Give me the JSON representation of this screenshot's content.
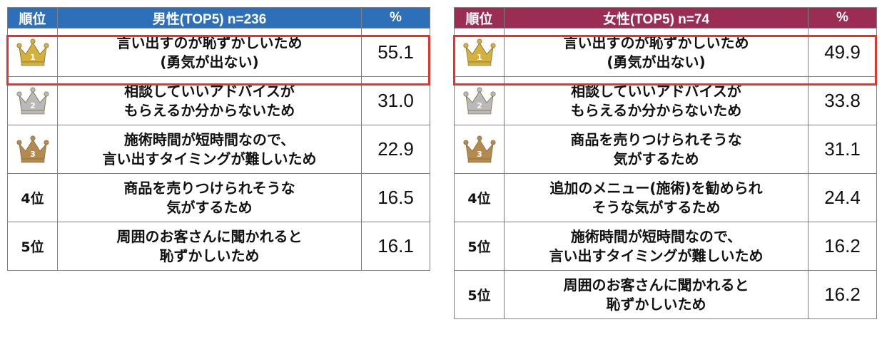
{
  "chart_data": [
    {
      "type": "table",
      "header": {
        "rank": "順位",
        "title": "男性(TOP5) n=236",
        "unit": "%"
      },
      "rows": [
        {
          "rank": "1",
          "reason": [
            "言い出すのが恥ずかしいため",
            "(勇気が出ない)"
          ],
          "value": "55.1"
        },
        {
          "rank": "2",
          "reason": [
            "相談していいアドバイスが",
            "もらえるか分からないため"
          ],
          "value": "31.0"
        },
        {
          "rank": "3",
          "reason": [
            "施術時間が短時間なので、",
            "言い出すタイミングが難しいため"
          ],
          "value": "22.9"
        },
        {
          "rank": "4位",
          "reason": [
            "商品を売りつけられそうな",
            "気がするため"
          ],
          "value": "16.5"
        },
        {
          "rank": "5位",
          "reason": [
            "周囲のお客さんに聞かれると",
            "恥ずかしいため"
          ],
          "value": "16.1"
        }
      ]
    },
    {
      "type": "table",
      "header": {
        "rank": "順位",
        "title": "女性(TOP5) n=74",
        "unit": "%"
      },
      "rows": [
        {
          "rank": "1",
          "reason": [
            "言い出すのが恥ずかしいため",
            "(勇気が出ない)"
          ],
          "value": "49.9"
        },
        {
          "rank": "2",
          "reason": [
            "相談していいアドバイスが",
            "もらえるか分からないため"
          ],
          "value": "33.8"
        },
        {
          "rank": "3",
          "reason": [
            "商品を売りつけられそうな",
            "気がするため"
          ],
          "value": "31.1"
        },
        {
          "rank": "4位",
          "reason": [
            "追加のメニュー(施術)を勧められ",
            "そうな気がするため"
          ],
          "value": "24.4"
        },
        {
          "rank": "5位",
          "reason": [
            "施術時間が短時間なので、",
            "言い出すタイミングが難しいため"
          ],
          "value": "16.2"
        },
        {
          "rank": "5位",
          "reason": [
            "周囲のお客さんに聞かれると",
            "恥ずかしいため"
          ],
          "value": "16.2"
        }
      ]
    }
  ],
  "colors": {
    "men_header": "#2e6fba",
    "women_header": "#9b2d55",
    "highlight": "#e8322b",
    "crown_gold": "#d4b13a",
    "crown_silver": "#b9b9b9",
    "crown_bronze": "#b58a4e"
  },
  "icons": {
    "rank1": "gold-crown-icon",
    "rank2": "silver-crown-icon",
    "rank3": "bronze-crown-icon"
  }
}
